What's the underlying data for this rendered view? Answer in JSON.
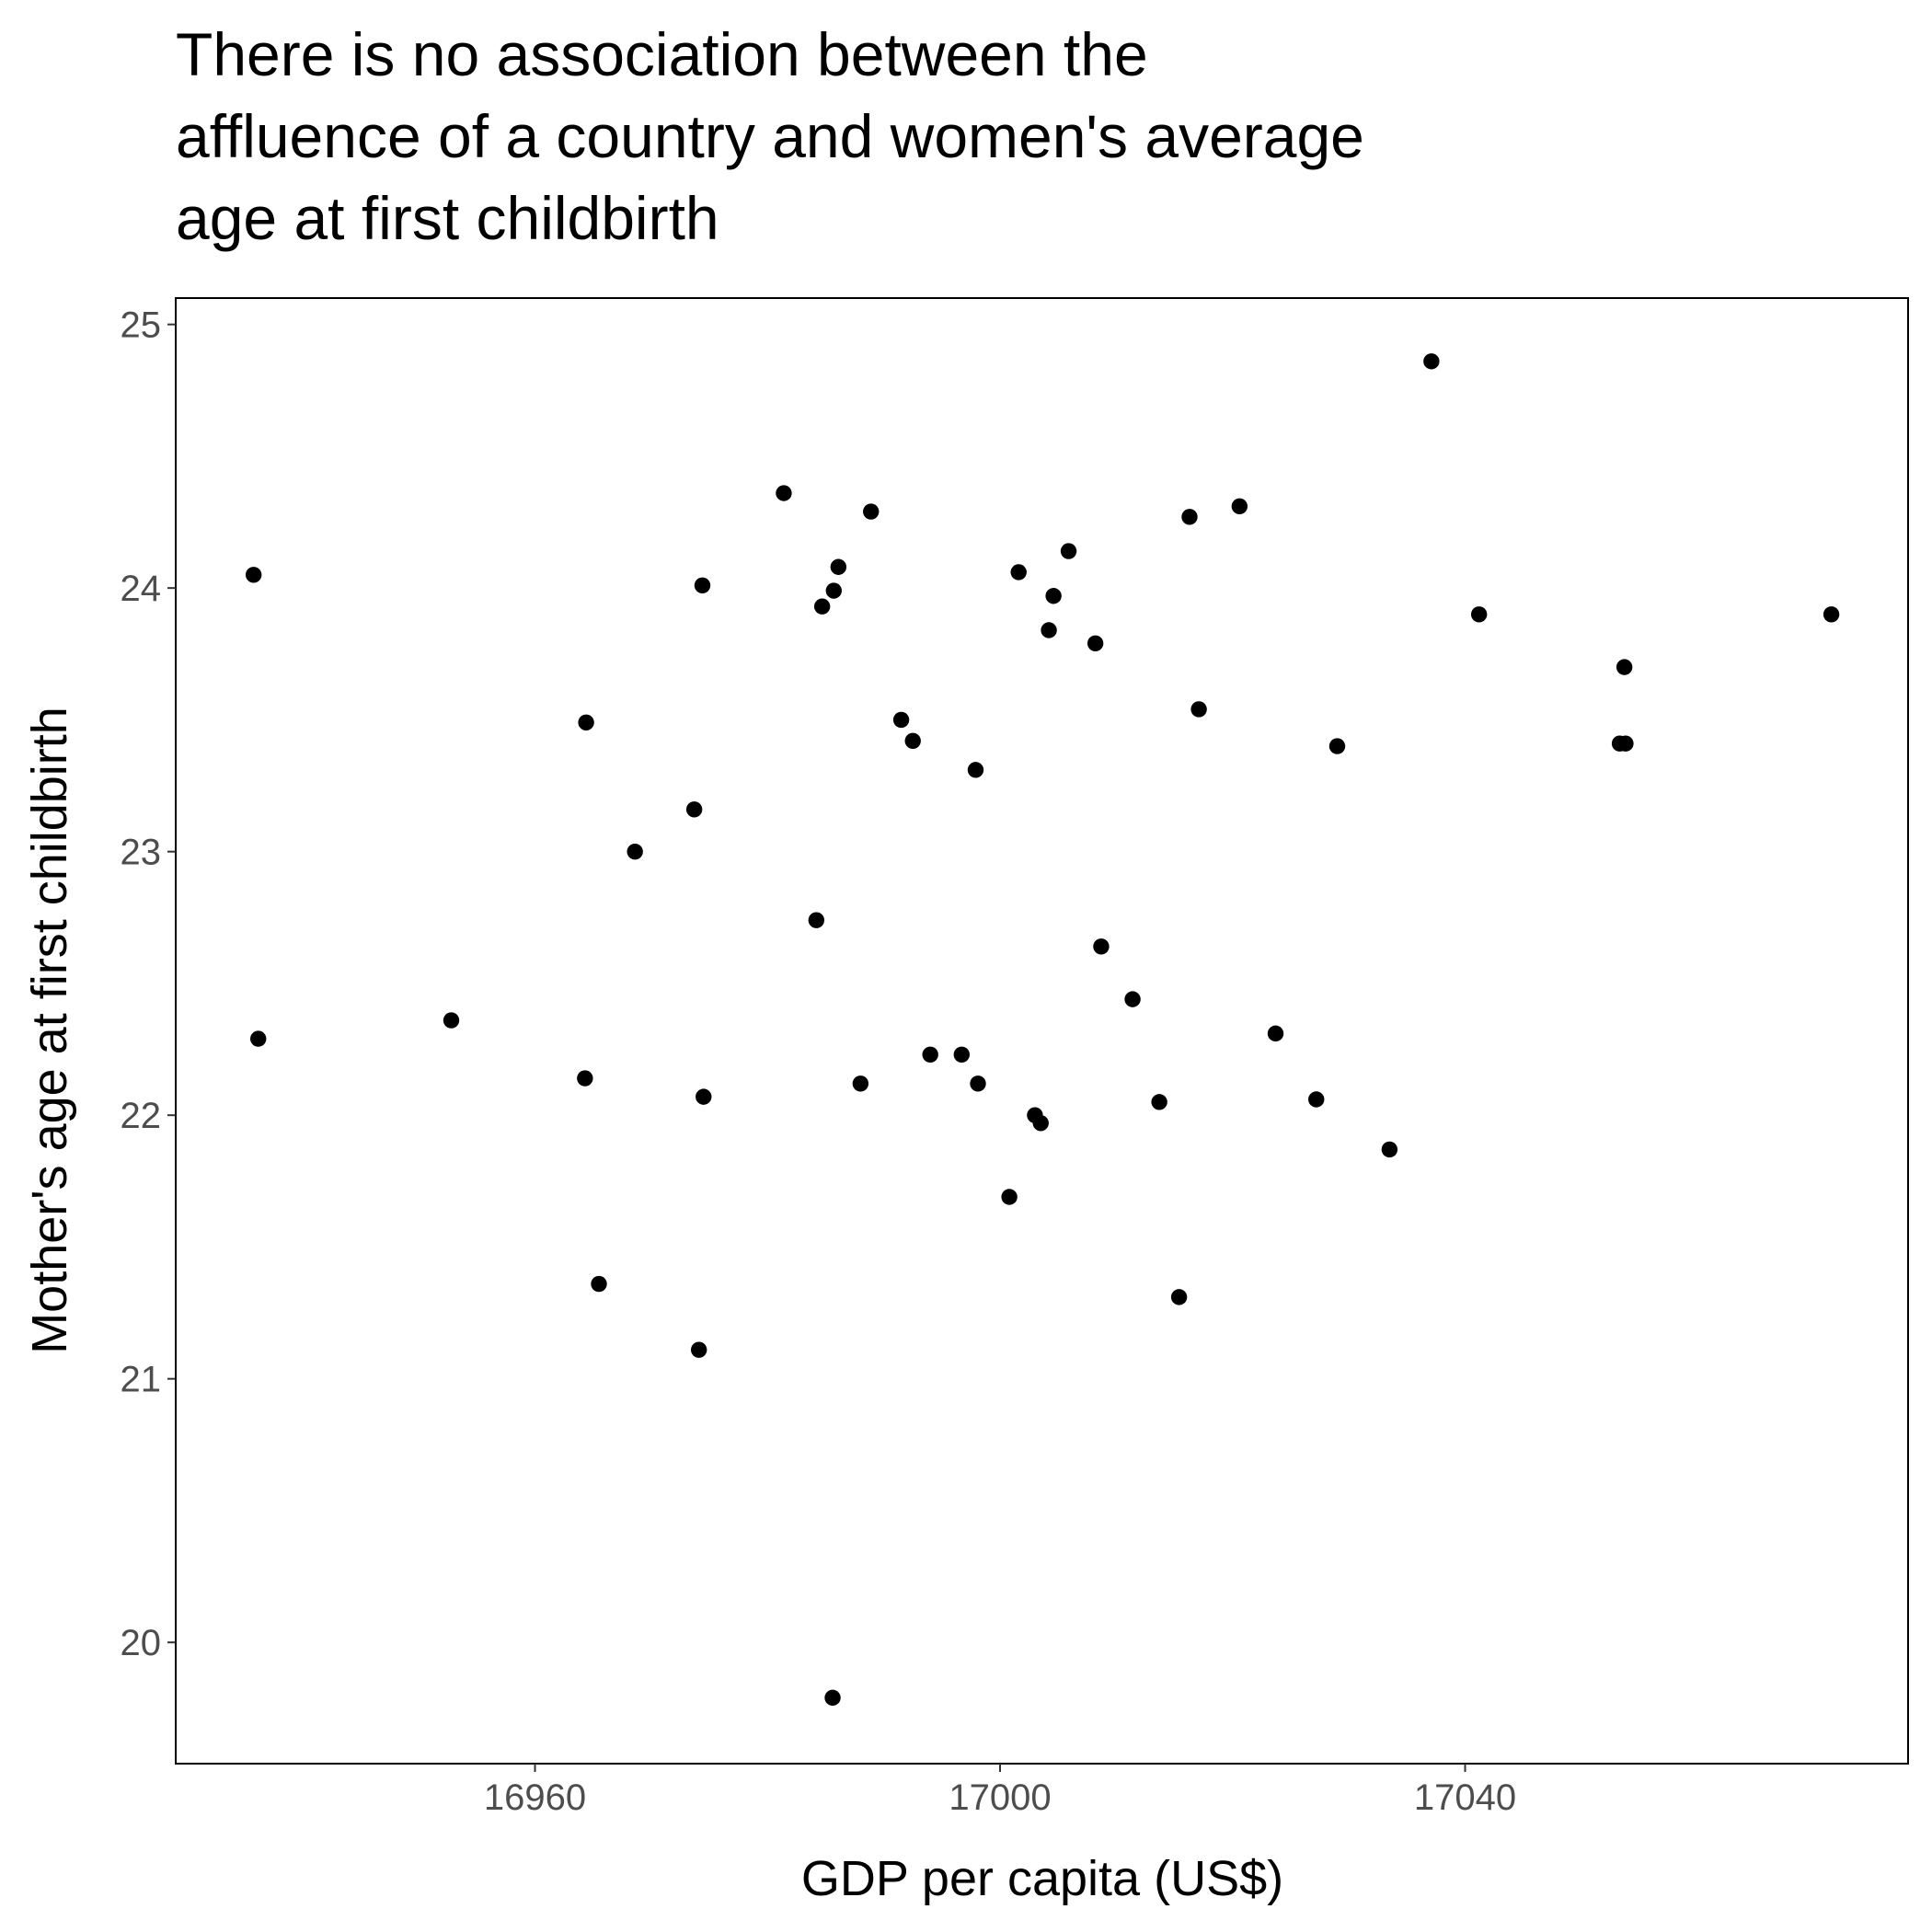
{
  "chart_data": {
    "type": "scatter",
    "title": [
      "There is no association between the",
      "affluence of a country and women's average",
      "age at first childbirth"
    ],
    "x_label": "GDP per capita (US$)",
    "y_label": "Mother's age at first childbirth",
    "color": "#000000",
    "xlim": [
      16929.1,
      17078.1
    ],
    "xticks": [
      16960,
      17000,
      17040
    ],
    "ylim": [
      19.54,
      25.1
    ],
    "yticks": [
      20,
      21,
      22,
      23,
      24,
      25
    ],
    "x": [
      16935.8,
      16936.2,
      16952.8,
      16964.4,
      16964.3,
      16965.5,
      16968.6,
      16973.7,
      16974.4,
      16974.5,
      16974.1,
      16981.4,
      16984.2,
      16984.7,
      16985.7,
      16986.1,
      16985.6,
      16988.9,
      16988.0,
      16991.5,
      16992.5,
      16994.0,
      16996.7,
      16997.9,
      16998.1,
      17000.8,
      17001.6,
      17003.0,
      17003.5,
      17004.2,
      17004.6,
      17005.9,
      17008.2,
      17008.7,
      17011.4,
      17013.7,
      17015.4,
      17016.3,
      17017.1,
      17020.6,
      17023.7,
      17027.2,
      17029.0,
      17033.5,
      17037.1,
      17041.2,
      17053.3,
      17053.8,
      17053.7,
      17071.5
    ],
    "values": [
      24.05,
      22.29,
      22.36,
      23.49,
      22.14,
      21.36,
      23.0,
      23.16,
      24.01,
      22.07,
      21.11,
      24.36,
      22.74,
      23.93,
      23.99,
      24.08,
      19.79,
      24.29,
      22.12,
      23.5,
      23.42,
      22.23,
      22.23,
      23.31,
      22.12,
      21.69,
      24.06,
      22.0,
      21.97,
      23.84,
      23.97,
      24.14,
      23.79,
      22.64,
      22.44,
      22.05,
      21.31,
      24.27,
      23.54,
      24.31,
      22.31,
      22.06,
      23.4,
      21.87,
      24.86,
      23.9,
      23.41,
      23.41,
      23.7,
      23.9
    ]
  }
}
